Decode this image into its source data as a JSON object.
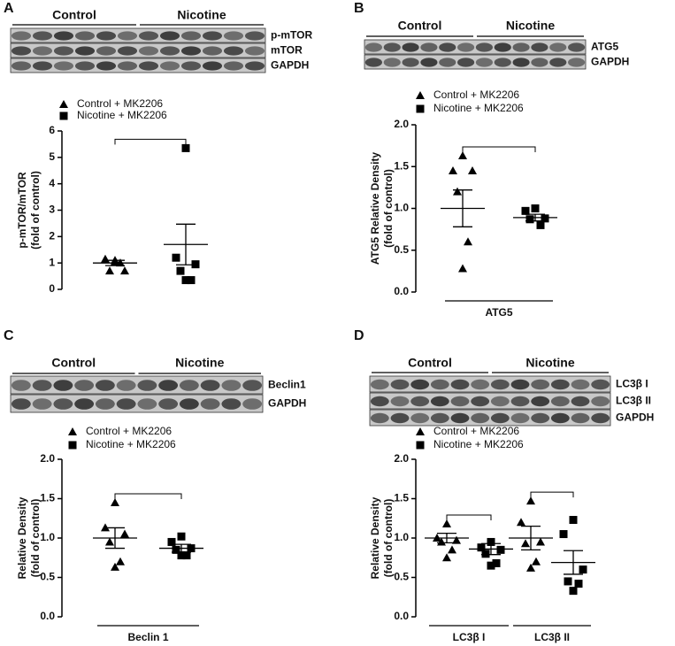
{
  "chart_data": [
    {
      "panel": "A",
      "type": "scatter",
      "blot": {
        "groups": [
          "Control",
          "Nicotine"
        ],
        "bands": [
          "p-mTOR",
          "mTOR",
          "GAPDH"
        ]
      },
      "ylabel": [
        "p-mTOR/mTOR",
        "(fold of control)"
      ],
      "ylim": [
        0,
        6
      ],
      "yticks": [
        0,
        1,
        2,
        3,
        4,
        5,
        6
      ],
      "categories": [
        null
      ],
      "series": [
        {
          "name": "Control + MK2206",
          "marker": "triangle",
          "color": "#000000",
          "values": [
            [
              1.1,
              1.15,
              0.7,
              0.7,
              1.0,
              1.05
            ]
          ],
          "mean": [
            1.0
          ],
          "sem": [
            0.1
          ]
        },
        {
          "name": "Nicotine + MK2206",
          "marker": "square",
          "color": "#000000",
          "values": [
            [
              5.35,
              1.2,
              0.95,
              0.7,
              0.35,
              0.35
            ]
          ],
          "mean": [
            1.7
          ],
          "sem": [
            0.77
          ]
        }
      ]
    },
    {
      "panel": "B",
      "type": "scatter",
      "blot": {
        "groups": [
          "Control",
          "Nicotine"
        ],
        "bands": [
          "ATG5",
          "GAPDH"
        ]
      },
      "ylabel": [
        "ATG5 Relative Density",
        "(fold of control)"
      ],
      "ylim": [
        0,
        2
      ],
      "yticks": [
        {
          "value": 0,
          "label": "0.0"
        },
        0.5,
        {
          "value": 1,
          "label": "1.0"
        },
        1.5,
        {
          "value": 2,
          "label": "2.0"
        }
      ],
      "categories": [
        "ATG5"
      ],
      "series": [
        {
          "name": "Control + MK2206",
          "marker": "triangle",
          "color": "#000000",
          "values": [
            [
              1.63,
              1.45,
              1.45,
              1.2,
              0.6,
              0.28
            ]
          ],
          "mean": [
            1.0
          ],
          "sem": [
            0.22
          ]
        },
        {
          "name": "Nicotine + MK2206",
          "marker": "square",
          "color": "#000000",
          "values": [
            [
              1.0,
              0.97,
              0.88,
              0.87,
              0.8
            ]
          ],
          "mean": [
            0.89
          ],
          "sem": [
            0.04
          ]
        }
      ]
    },
    {
      "panel": "C",
      "type": "scatter",
      "blot": {
        "groups": [
          "Control",
          "Nicotine"
        ],
        "bands": [
          "Beclin1",
          "GAPDH"
        ]
      },
      "ylabel": [
        "Relative Density",
        "(fold of control)"
      ],
      "ylim": [
        0,
        2
      ],
      "yticks": [
        {
          "value": 0,
          "label": "0.0"
        },
        0.5,
        {
          "value": 1,
          "label": "1.0"
        },
        1.5,
        {
          "value": 2,
          "label": "2.0"
        }
      ],
      "categories": [
        "Beclin 1"
      ],
      "series": [
        {
          "name": "Control + MK2206",
          "marker": "triangle",
          "color": "#000000",
          "values": [
            [
              1.45,
              1.13,
              1.05,
              0.95,
              0.7,
              0.63
            ]
          ],
          "mean": [
            1.0
          ],
          "sem": [
            0.13
          ]
        },
        {
          "name": "Nicotine + MK2206",
          "marker": "square",
          "color": "#000000",
          "values": [
            [
              1.02,
              0.95,
              0.87,
              0.85,
              0.78,
              0.78
            ]
          ],
          "mean": [
            0.87
          ],
          "sem": [
            0.05
          ]
        }
      ]
    },
    {
      "panel": "D",
      "type": "scatter",
      "blot": {
        "groups": [
          "Control",
          "Nicotine"
        ],
        "bands": [
          "LC3β I",
          "LC3β II",
          "GAPDH"
        ]
      },
      "ylabel": [
        "Relative Density",
        "(fold of control)"
      ],
      "ylim": [
        0,
        2
      ],
      "yticks": [
        {
          "value": 0,
          "label": "0.0"
        },
        0.5,
        {
          "value": 1,
          "label": "1.0"
        },
        1.5,
        {
          "value": 2,
          "label": "2.0"
        }
      ],
      "categories": [
        "LC3β I",
        "LC3β II"
      ],
      "series": [
        {
          "name": "Control + MK2206",
          "marker": "triangle",
          "color": "#000000",
          "values": [
            [
              1.18,
              1.0,
              0.97,
              0.95,
              0.85,
              0.75
            ],
            [
              1.47,
              1.2,
              0.95,
              0.93,
              0.7,
              0.62
            ]
          ],
          "mean": [
            1.0,
            1.0
          ],
          "sem": [
            0.06,
            0.15
          ]
        },
        {
          "name": "Nicotine + MK2206",
          "marker": "square",
          "color": "#000000",
          "values": [
            [
              0.95,
              0.88,
              0.85,
              0.8,
              0.68,
              0.65
            ],
            [
              1.23,
              1.05,
              0.6,
              0.45,
              0.42,
              0.33
            ]
          ],
          "mean": [
            0.86,
            0.69
          ],
          "sem": [
            0.07,
            0.15
          ]
        }
      ]
    }
  ]
}
